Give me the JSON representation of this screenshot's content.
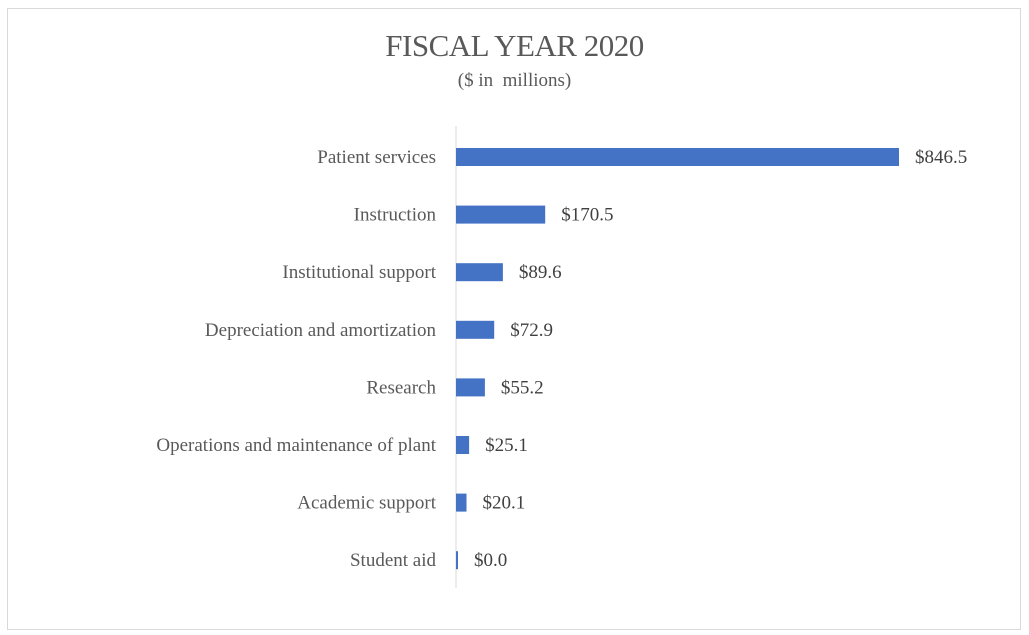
{
  "chart_data": {
    "type": "bar",
    "orientation": "horizontal",
    "title": "FISCAL YEAR 2020",
    "subtitle": "($ in  millions)",
    "categories": [
      "Patient services",
      "Instruction",
      "Institutional support",
      "Depreciation and amortization",
      "Research",
      "Operations and maintenance of plant",
      "Academic support",
      "Student aid"
    ],
    "values": [
      846.5,
      170.5,
      89.6,
      72.9,
      55.2,
      25.1,
      20.1,
      0.0
    ],
    "data_labels": [
      "$846.5",
      "$170.5",
      "$89.6",
      "$72.9",
      "$55.2",
      "$25.1",
      "$20.1",
      "$0.0"
    ],
    "xlim": [
      0,
      846.5
    ],
    "bar_color": "#4472c4",
    "axis_color": "#d9d9d9",
    "grid": false,
    "legend": "none"
  }
}
